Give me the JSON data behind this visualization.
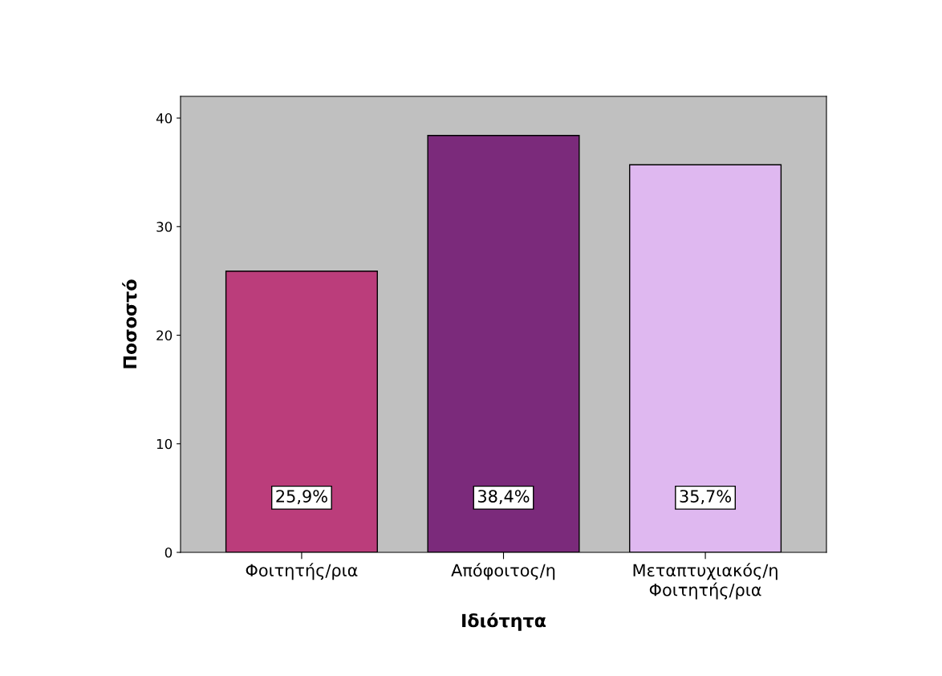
{
  "chart_data": {
    "type": "bar",
    "xlabel": "Ιδιότητα",
    "ylabel": "Ποσοστό",
    "categories": [
      "Φοιτητής/ρια",
      "Απόφοιτος/η",
      "Μεταπτυχιακός/η\nΦοιτητής/ρια"
    ],
    "values": [
      25.9,
      38.4,
      35.7
    ],
    "colors": [
      "#bb3d7b",
      "#7b2a7b",
      "#dfb8f0"
    ],
    "value_labels": [
      "25,9%",
      "38,4%",
      "35,7%"
    ],
    "ylim": [
      0,
      42
    ],
    "yticks": [
      0,
      10,
      20,
      30,
      40
    ],
    "grid": false
  }
}
